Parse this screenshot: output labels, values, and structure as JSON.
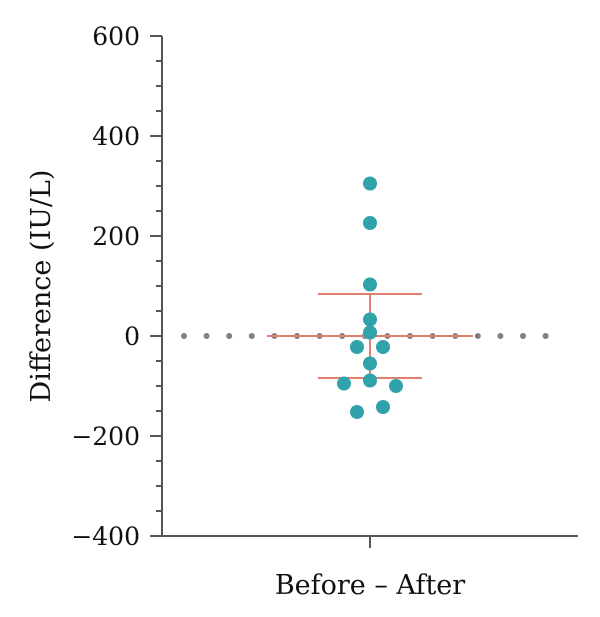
{
  "chart_data": {
    "type": "scatter",
    "title": "",
    "xlabel": "Before – After",
    "ylabel": "Difference (IU/L)",
    "ylim": [
      -400,
      600
    ],
    "yticks": [
      {
        "value": 600,
        "label": "600"
      },
      {
        "value": 400,
        "label": "400"
      },
      {
        "value": 200,
        "label": "200"
      },
      {
        "value": 0,
        "label": "0"
      },
      {
        "value": -200,
        "label": "−200"
      },
      {
        "value": -400,
        "label": "−400"
      }
    ],
    "grid": false,
    "reference_line": {
      "y": 0,
      "style": "dotted",
      "color": "#808080"
    },
    "points": [
      {
        "jitter": 0,
        "y": 305
      },
      {
        "jitter": 0,
        "y": 226
      },
      {
        "jitter": 0,
        "y": 103
      },
      {
        "jitter": 0,
        "y": 33
      },
      {
        "jitter": 0,
        "y": 7
      },
      {
        "jitter": -1,
        "y": -22
      },
      {
        "jitter": 1,
        "y": -22
      },
      {
        "jitter": 0,
        "y": -55
      },
      {
        "jitter": 0,
        "y": -89
      },
      {
        "jitter": -2,
        "y": -95
      },
      {
        "jitter": 2,
        "y": -100
      },
      {
        "jitter": 1,
        "y": -142
      },
      {
        "jitter": -1,
        "y": -152
      }
    ],
    "summary": {
      "mean": 0,
      "upper": 84,
      "lower": -84
    },
    "colors": {
      "points": "#2fa2aa",
      "summary": "#e07f6e",
      "axis": "#555555"
    }
  }
}
